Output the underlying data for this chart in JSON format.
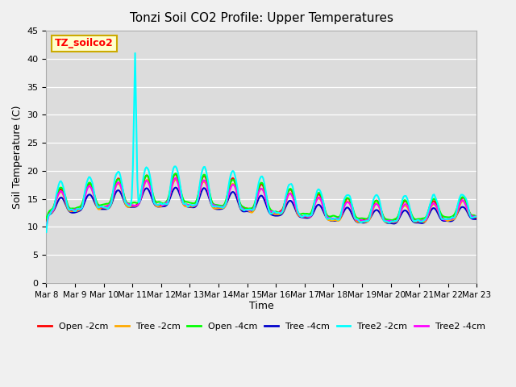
{
  "title": "Tonzi Soil CO2 Profile: Upper Temperatures",
  "xlabel": "Time",
  "ylabel": "Soil Temperature (C)",
  "ylim": [
    0,
    45
  ],
  "yticks": [
    0,
    5,
    10,
    15,
    20,
    25,
    30,
    35,
    40,
    45
  ],
  "bg_color": "#dcdcdc",
  "fig_bg": "#f0f0f0",
  "label_box_text": "TZ_soilco2",
  "label_box_bg": "#ffffcc",
  "label_box_border": "#ccaa00",
  "series_colors": [
    "#ff0000",
    "#ffaa00",
    "#00ff00",
    "#0000cc",
    "#00ffff",
    "#ff00ff"
  ],
  "series_labels": [
    "Open -2cm",
    "Tree -2cm",
    "Open -4cm",
    "Tree -4cm",
    "Tree2 -2cm",
    "Tree2 -4cm"
  ],
  "x_tick_labels": [
    "Mar 8",
    "Mar 9",
    "Mar 10",
    "Mar 11",
    "Mar 12",
    "Mar 13",
    "Mar 14",
    "Mar 15",
    "Mar 16",
    "Mar 17",
    "Mar 18",
    "Mar 19",
    "Mar 20",
    "Mar 21",
    "Mar 22",
    "Mar 23"
  ],
  "n_points": 384,
  "end_day": 15
}
